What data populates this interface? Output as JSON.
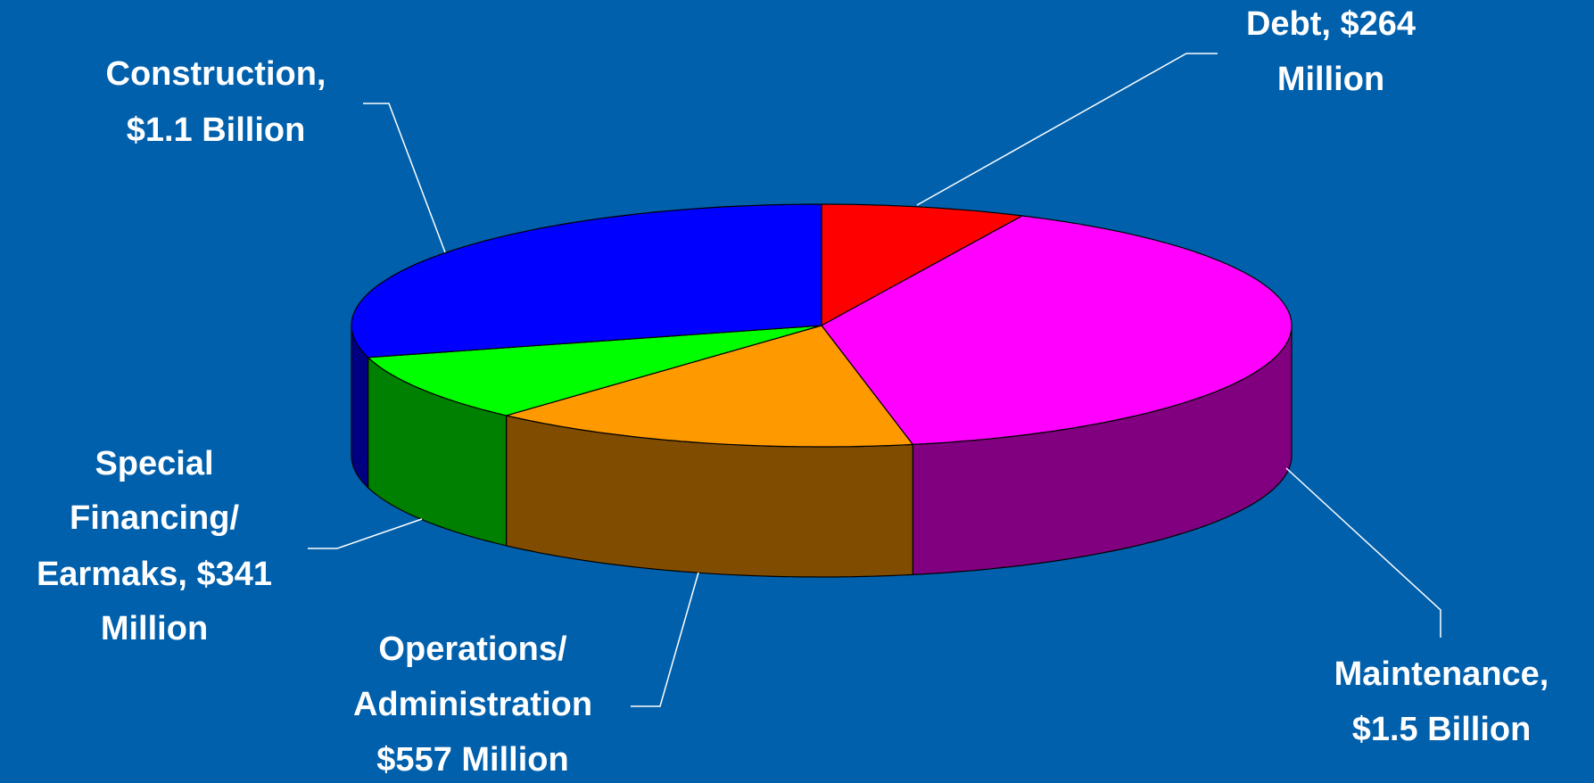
{
  "chart_data": {
    "type": "pie",
    "labels": [
      [
        "Debt, $264",
        "Million"
      ],
      [
        "Maintenance,",
        "$1.5 Billion"
      ],
      [
        "Operations/",
        "Administration",
        "$557 Million"
      ],
      [
        "Special",
        "Financing/",
        "Earmaks, $341",
        "Million"
      ],
      [
        "Construction,",
        "$1.1 Billion"
      ]
    ],
    "values": [
      264,
      1500,
      557,
      341,
      1100
    ],
    "colors": [
      "#ff0000",
      "#ff00ff",
      "#ff9900",
      "#00ff00",
      "#0000ff"
    ]
  }
}
